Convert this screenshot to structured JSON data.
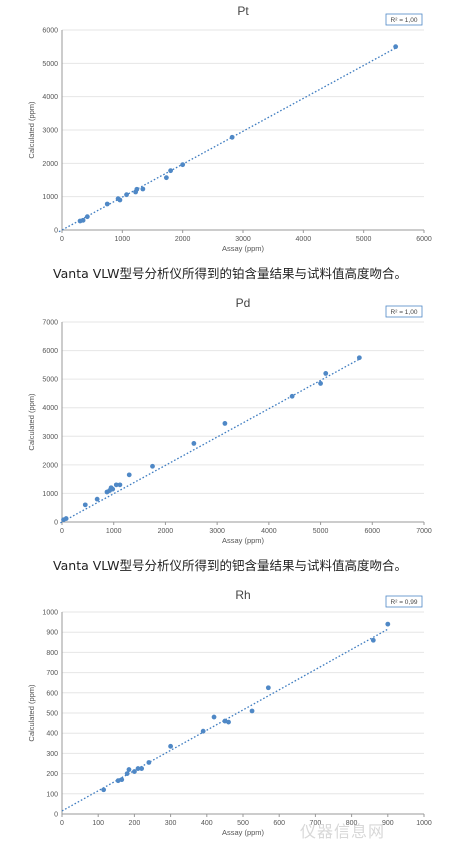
{
  "chart_data": [
    {
      "type": "scatter",
      "title": "Pt",
      "xlabel": "Assay (ppm)",
      "ylabel": "Calculated (ppm)",
      "xlim": [
        0,
        6000
      ],
      "ylim": [
        0,
        6000
      ],
      "xticks": [
        0,
        1000,
        2000,
        3000,
        4000,
        5000,
        6000
      ],
      "yticks": [
        0,
        1000,
        2000,
        3000,
        4000,
        5000,
        6000
      ],
      "r2": "R² = 1,00",
      "grid": "horizontal",
      "trendline": [
        [
          -50,
          -50
        ],
        [
          5550,
          5480
        ]
      ],
      "x": [
        300,
        350,
        420,
        750,
        930,
        960,
        1070,
        1220,
        1240,
        1340,
        1730,
        1800,
        2000,
        2820,
        5530
      ],
      "y": [
        270,
        290,
        400,
        780,
        940,
        900,
        1060,
        1140,
        1220,
        1230,
        1570,
        1780,
        1960,
        2780,
        5500
      ]
    },
    {
      "type": "scatter",
      "title": "Pd",
      "xlabel": "Assay (ppm)",
      "ylabel": "Calculated (ppm)",
      "xlim": [
        0,
        7000
      ],
      "ylim": [
        0,
        7000
      ],
      "xticks": [
        0,
        1000,
        2000,
        3000,
        4000,
        5000,
        6000,
        7000
      ],
      "yticks": [
        0,
        1000,
        2000,
        3000,
        4000,
        5000,
        6000,
        7000
      ],
      "r2": "R² = 1,00",
      "grid": "horizontal",
      "trendline": [
        [
          -30,
          -30
        ],
        [
          5750,
          5700
        ]
      ],
      "x": [
        30,
        80,
        450,
        680,
        870,
        920,
        950,
        980,
        1050,
        1120,
        1300,
        1750,
        2550,
        3150,
        4450,
        5000,
        5100,
        5750
      ],
      "y": [
        80,
        120,
        600,
        800,
        1050,
        1100,
        1200,
        1150,
        1300,
        1300,
        1650,
        1950,
        2750,
        3450,
        4400,
        4850,
        5200,
        5750
      ]
    },
    {
      "type": "scatter",
      "title": "Rh",
      "xlabel": "Assay (ppm)",
      "ylabel": "Calculated (ppm)",
      "xlim": [
        0,
        1000
      ],
      "ylim": [
        0,
        1000
      ],
      "xticks": [
        0,
        100,
        200,
        300,
        400,
        500,
        600,
        700,
        800,
        900,
        1000
      ],
      "yticks": [
        0,
        100,
        200,
        300,
        400,
        500,
        600,
        700,
        800,
        900,
        1000
      ],
      "r2": "R² = 0,99",
      "grid": "horizontal",
      "trendline": [
        [
          0,
          15
        ],
        [
          900,
          915
        ]
      ],
      "x": [
        115,
        155,
        165,
        180,
        185,
        200,
        210,
        220,
        240,
        300,
        390,
        420,
        450,
        460,
        525,
        570,
        860,
        900
      ],
      "y": [
        120,
        165,
        170,
        200,
        220,
        210,
        225,
        225,
        255,
        335,
        410,
        480,
        460,
        455,
        510,
        625,
        860,
        940
      ]
    }
  ],
  "captions": [
    "Vanta VLW型号分析仪所得到的铂含量结果与试料值高度吻合。",
    "Vanta VLW型号分析仪所得到的钯含量结果与试料值高度吻合。"
  ],
  "colors": {
    "point": "#4f88c6",
    "trend": "#3e7cc0",
    "grid": "#e6e6e6",
    "axis": "#999999",
    "text": "#555555",
    "badge_border": "#4f88c6"
  },
  "watermark": "仪器信息网"
}
